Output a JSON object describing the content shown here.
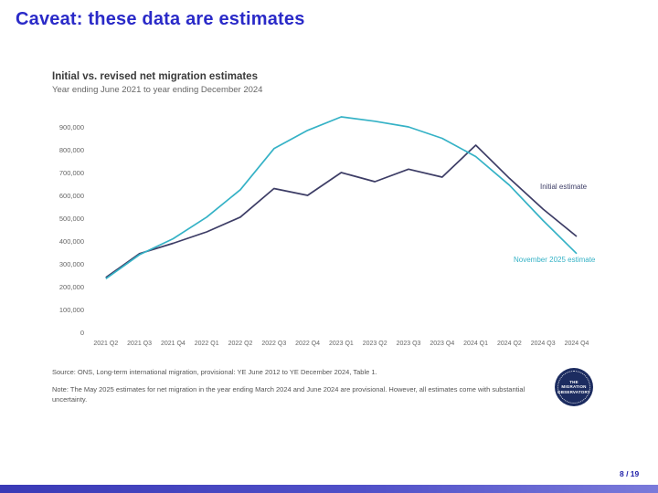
{
  "slide": {
    "title": "Caveat: these data are estimates",
    "page_number": "8 / 19",
    "accent_color": "#2a2ac8",
    "bottom_bar_color": "#4a4ac4"
  },
  "chart": {
    "title": "Initial vs. revised net migration estimates",
    "subtitle": "Year ending June 2021 to year ending December 2024",
    "source": "Source: ONS, Long-term international migration, provisional: YE June 2012 to YE December 2024, Table 1.",
    "note": "Note: The May 2025 estimates for net migration in the year ending March 2024 and June 2024 are provisional. However, all estimates come with substantial uncertainty."
  },
  "chart_data": {
    "type": "line",
    "categories": [
      "2021 Q2",
      "2021 Q3",
      "2021 Q4",
      "2022 Q1",
      "2022 Q2",
      "2022 Q3",
      "2022 Q4",
      "2023 Q1",
      "2023 Q2",
      "2023 Q3",
      "2023 Q4",
      "2024 Q1",
      "2024 Q2",
      "2024 Q3",
      "2024 Q4"
    ],
    "series": [
      {
        "name": "Initial estimate",
        "color": "#3d3d66",
        "values": [
          240000,
          345000,
          390000,
          440000,
          505000,
          630000,
          600000,
          700000,
          660000,
          715000,
          680000,
          820000,
          675000,
          540000,
          420000
        ]
      },
      {
        "name": "November 2025 estimate",
        "color": "#35b2c6",
        "values": [
          235000,
          340000,
          410000,
          505000,
          625000,
          805000,
          885000,
          944000,
          925000,
          900000,
          850000,
          770000,
          645000,
          490000,
          345000
        ]
      }
    ],
    "y_ticks": [
      0,
      100000,
      200000,
      300000,
      400000,
      500000,
      600000,
      700000,
      800000,
      900000
    ],
    "ylim": [
      0,
      1000000
    ],
    "grid": false,
    "legend_position": "inline-right-of-lines",
    "title": "Initial vs. revised net migration estimates",
    "xlabel": "",
    "ylabel": ""
  },
  "logo": {
    "line1": "THE",
    "line2": "MIGRATION",
    "line3": "OBSERVATORY"
  }
}
